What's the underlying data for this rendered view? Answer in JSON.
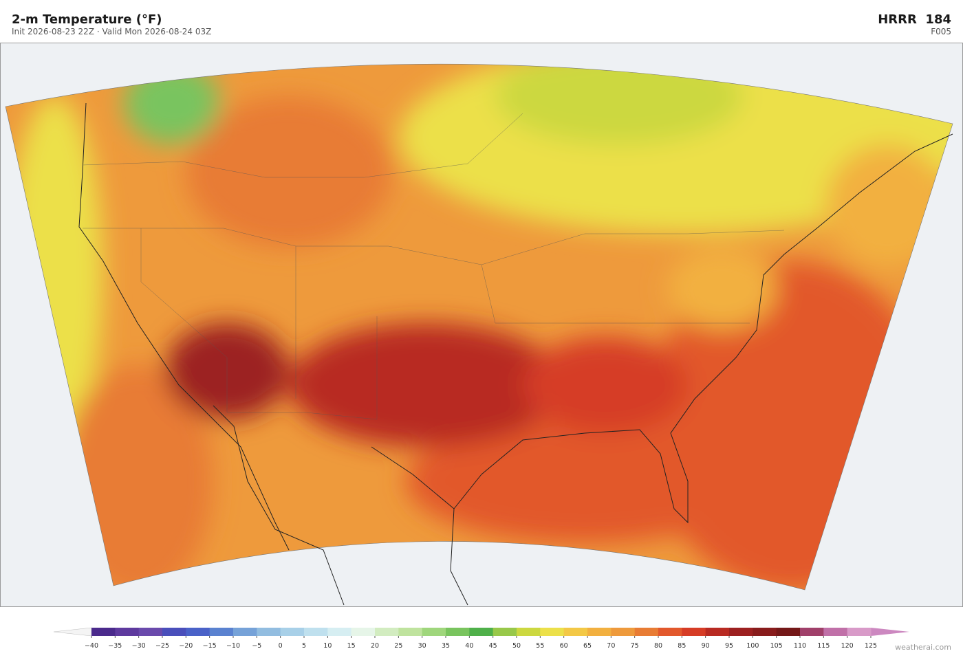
{
  "header": {
    "title": "2-m Temperature  (°F)",
    "subtitle": "Init 2026-08-23 22Z   ·   Valid Mon 2026-08-24 03Z",
    "model": "HRRR  184",
    "forecast_hour": "F005"
  },
  "colorbar": {
    "ticks": [
      {
        "value": -40,
        "label": "−40"
      },
      {
        "value": -35,
        "label": "−35"
      },
      {
        "value": -30,
        "label": "−30"
      },
      {
        "value": -25,
        "label": "−25"
      },
      {
        "value": -20,
        "label": "−20"
      },
      {
        "value": -15,
        "label": "−15"
      },
      {
        "value": -10,
        "label": "−10"
      },
      {
        "value": -5,
        "label": "−5"
      },
      0,
      5,
      10,
      15,
      20,
      25,
      30,
      35,
      40,
      45,
      50,
      55,
      60,
      65,
      70,
      75,
      80,
      85,
      90,
      95,
      100,
      105,
      110,
      115,
      120,
      125
    ],
    "colors": [
      "#4b2a8c",
      "#5e3a9e",
      "#6a4aac",
      "#4a4fbb",
      "#4a62c8",
      "#5a82d0",
      "#76a2d8",
      "#92bde0",
      "#a8d0e8",
      "#bfe0ee",
      "#d6eef2",
      "#e6f5e8",
      "#d2ecc0",
      "#bfe39e",
      "#9fd67c",
      "#79c45e",
      "#4fb04a",
      "#98c84a",
      "#ccd840",
      "#ece04a",
      "#f3c846",
      "#f2b040",
      "#ee9a3c",
      "#e87c34",
      "#e2582c",
      "#d63c26",
      "#b82a22",
      "#9c2020",
      "#881c1c",
      "#741818",
      "#a0406a",
      "#c070a8",
      "#d89ac8"
    ],
    "under_color": "#f4f4f4",
    "over_color": "#cc88c0"
  },
  "footer": {
    "credit": "weatherai.com"
  }
}
